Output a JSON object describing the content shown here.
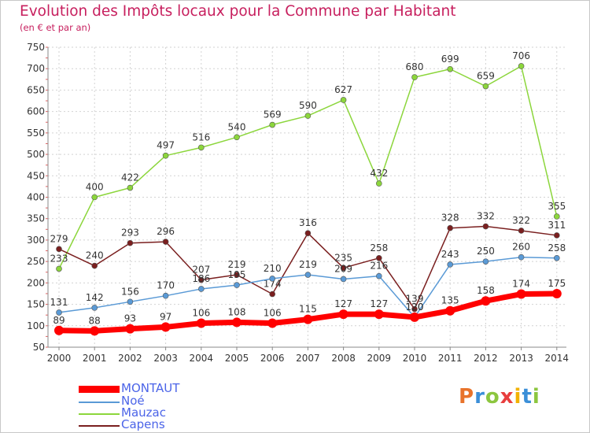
{
  "chart_data": {
    "type": "line",
    "title": "Evolution des Impôts locaux pour la Commune par Habitant",
    "subtitle": "(en € et par an)",
    "x": [
      "2000",
      "2001",
      "2002",
      "2003",
      "2004",
      "2005",
      "2006",
      "2007",
      "2008",
      "2009",
      "2010",
      "2011",
      "2012",
      "2013",
      "2014"
    ],
    "yticks": [
      50,
      100,
      150,
      200,
      250,
      300,
      350,
      400,
      450,
      500,
      550,
      600,
      650,
      700,
      750
    ],
    "ylim": [
      50,
      750
    ],
    "grid": true,
    "series": [
      {
        "name": "Mauzac",
        "color": "#8cd63c",
        "values": [
          233,
          400,
          422,
          497,
          516,
          540,
          569,
          590,
          627,
          432,
          680,
          699,
          659,
          706,
          355
        ],
        "labels": [
          "233",
          "400",
          "422",
          "497",
          "516",
          "540",
          "569",
          "590",
          "627",
          "432",
          "680",
          "699",
          "659",
          "706",
          "355"
        ]
      },
      {
        "name": "Capens",
        "color": "#7a1f1f",
        "values": [
          279,
          240,
          293,
          296,
          207,
          219,
          174,
          316,
          235,
          258,
          139,
          328,
          332,
          322,
          311
        ],
        "labels": [
          "279",
          "240",
          "293",
          "296",
          "207",
          "219",
          "174",
          "316",
          "235",
          "258",
          "139",
          "328",
          "332",
          "322",
          "311"
        ]
      },
      {
        "name": "Noé",
        "color": "#5a9ad6",
        "values": [
          131,
          142,
          156,
          170,
          186,
          195,
          210,
          219,
          209,
          216,
          120,
          243,
          250,
          260,
          258
        ],
        "labels": [
          "131",
          "142",
          "156",
          "170",
          "186",
          "195",
          "210",
          "219",
          "209",
          "216",
          "120",
          "243",
          "250",
          "260",
          "258"
        ]
      },
      {
        "name": "MONTAUT",
        "color": "#ff0000",
        "values": [
          89,
          88,
          93,
          97,
          106,
          108,
          106,
          115,
          127,
          127,
          120,
          135,
          158,
          174,
          175
        ],
        "labels": [
          "89",
          "88",
          "93",
          "97",
          "106",
          "108",
          "106",
          "115",
          "127",
          "127",
          "120",
          "135",
          "158",
          "174",
          "175"
        ]
      }
    ],
    "legend": [
      "MONTAUT",
      "Noé",
      "Mauzac",
      "Capens"
    ]
  },
  "logo": {
    "letters": [
      "P",
      "r",
      "o",
      "x",
      "i",
      "t",
      "i"
    ],
    "colors": [
      "#e8732b",
      "#3b8fd8",
      "#8cc63f",
      "#e83e3e",
      "#f2b200",
      "#3b8fd8",
      "#8cc63f"
    ]
  }
}
